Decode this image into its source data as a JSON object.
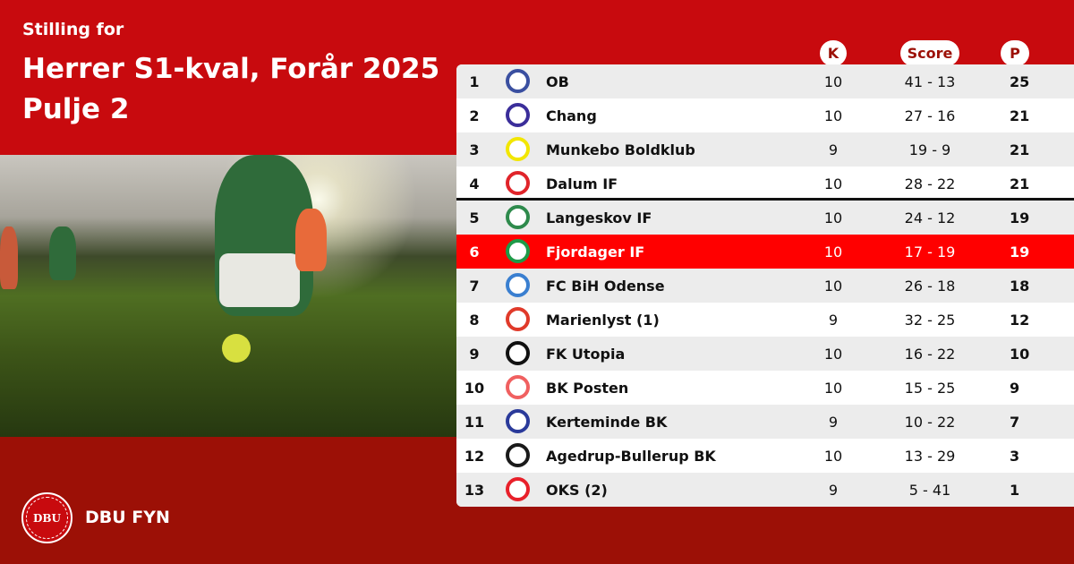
{
  "header": {
    "subtitle": "Stilling for",
    "title_line1": "Herrer S1-kval, Forår 2025",
    "title_line2": "Pulje 2"
  },
  "footer": {
    "brand": "DBU FYN",
    "logo_text": "DBU"
  },
  "table": {
    "columns": {
      "k": "K",
      "score": "Score",
      "p": "P"
    },
    "highlight_color": "#ff0000",
    "rows": [
      {
        "rank": "1",
        "team": "OB",
        "k": "10",
        "score": "41 - 13",
        "p": "25",
        "crest_color": "#3a4fa0"
      },
      {
        "rank": "2",
        "team": "Chang",
        "k": "10",
        "score": "27 - 16",
        "p": "21",
        "crest_color": "#3b2e9a"
      },
      {
        "rank": "3",
        "team": "Munkebo Boldklub",
        "k": "9",
        "score": "19 - 9",
        "p": "21",
        "crest_color": "#f2e600"
      },
      {
        "rank": "4",
        "team": "Dalum IF",
        "k": "10",
        "score": "28 - 22",
        "p": "21",
        "crest_color": "#e0242a"
      },
      {
        "rank": "5",
        "team": "Langeskov IF",
        "k": "10",
        "score": "24 - 12",
        "p": "19",
        "crest_color": "#2e8a4c"
      },
      {
        "rank": "6",
        "team": "Fjordager IF",
        "k": "10",
        "score": "17 - 19",
        "p": "19",
        "crest_color": "#1e9a48",
        "highlight": true
      },
      {
        "rank": "7",
        "team": "FC BiH Odense",
        "k": "10",
        "score": "26 - 18",
        "p": "18",
        "crest_color": "#3a7fd0"
      },
      {
        "rank": "8",
        "team": "Marienlyst (1)",
        "k": "9",
        "score": "32 - 25",
        "p": "12",
        "crest_color": "#e03a2a"
      },
      {
        "rank": "9",
        "team": "FK Utopia",
        "k": "10",
        "score": "16 - 22",
        "p": "10",
        "crest_color": "#111111"
      },
      {
        "rank": "10",
        "team": "BK Posten",
        "k": "10",
        "score": "15 - 25",
        "p": "9",
        "crest_color": "#f06060"
      },
      {
        "rank": "11",
        "team": "Kerteminde BK",
        "k": "9",
        "score": "10 - 22",
        "p": "7",
        "crest_color": "#2a3a9a"
      },
      {
        "rank": "12",
        "team": "Agedrup-Bullerup BK",
        "k": "10",
        "score": "13 - 29",
        "p": "3",
        "crest_color": "#1a1a1a"
      },
      {
        "rank": "13",
        "team": "OKS (2)",
        "k": "9",
        "score": "5 - 41",
        "p": "1",
        "crest_color": "#e8202a"
      }
    ]
  }
}
